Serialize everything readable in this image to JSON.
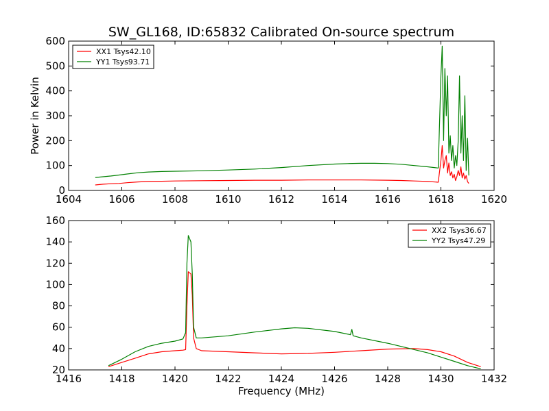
{
  "chart_data": [
    {
      "type": "line",
      "title": "SW_GL168, ID:65832 Calibrated On-source spectrum",
      "xlabel": "",
      "ylabel": "Power in Kelvin",
      "xlim": [
        1604,
        1620
      ],
      "ylim": [
        0,
        600
      ],
      "xticks": [
        1604,
        1606,
        1608,
        1610,
        1612,
        1614,
        1616,
        1618,
        1620
      ],
      "yticks": [
        0,
        100,
        200,
        300,
        400,
        500,
        600
      ],
      "grid": false,
      "legend": "top-left",
      "series": [
        {
          "name": "XX1 Tsys42.10",
          "color": "#ff0000",
          "x": [
            1605.0,
            1605.3,
            1605.6,
            1605.9,
            1606.2,
            1606.6,
            1607.0,
            1607.5,
            1608.0,
            1609.0,
            1610.0,
            1611.0,
            1612.0,
            1613.0,
            1614.0,
            1615.0,
            1616.0,
            1616.5,
            1617.0,
            1617.5,
            1617.9,
            1618.0,
            1618.05,
            1618.1,
            1618.15,
            1618.2,
            1618.25,
            1618.3,
            1618.35,
            1618.4,
            1618.45,
            1618.5,
            1618.55,
            1618.6,
            1618.65,
            1618.7,
            1618.75,
            1618.8,
            1618.85,
            1618.9,
            1618.95,
            1619.0,
            1619.05
          ],
          "values": [
            22,
            25,
            27,
            28,
            31,
            34,
            36,
            37,
            38,
            39,
            40,
            41,
            41,
            42,
            42,
            42,
            41,
            40,
            38,
            36,
            33,
            120,
            180,
            90,
            120,
            140,
            70,
            110,
            60,
            75,
            50,
            65,
            40,
            55,
            80,
            60,
            95,
            50,
            70,
            45,
            60,
            35,
            28
          ]
        },
        {
          "name": "YY1 Tsys93.71",
          "color": "#008000",
          "x": [
            1605.0,
            1605.3,
            1605.6,
            1605.9,
            1606.2,
            1606.6,
            1607.0,
            1607.5,
            1608.0,
            1609.0,
            1610.0,
            1611.0,
            1612.0,
            1613.0,
            1614.0,
            1614.5,
            1615.0,
            1615.5,
            1616.0,
            1616.5,
            1617.0,
            1617.5,
            1617.9,
            1618.0,
            1618.05,
            1618.1,
            1618.15,
            1618.2,
            1618.25,
            1618.3,
            1618.35,
            1618.4,
            1618.45,
            1618.5,
            1618.55,
            1618.6,
            1618.65,
            1618.7,
            1618.75,
            1618.8,
            1618.85,
            1618.9,
            1618.95,
            1619.0,
            1619.05
          ],
          "values": [
            52,
            55,
            58,
            62,
            66,
            71,
            74,
            76,
            77,
            79,
            82,
            86,
            92,
            100,
            106,
            108,
            109,
            109,
            108,
            105,
            100,
            95,
            90,
            460,
            580,
            200,
            490,
            300,
            460,
            150,
            220,
            120,
            180,
            90,
            140,
            100,
            200,
            460,
            150,
            300,
            120,
            380,
            80,
            210,
            60
          ]
        }
      ]
    },
    {
      "type": "line",
      "title": "",
      "xlabel": "Frequency (MHz)",
      "ylabel": "",
      "xlim": [
        1416,
        1432
      ],
      "ylim": [
        20,
        160
      ],
      "xticks": [
        1416,
        1418,
        1420,
        1422,
        1424,
        1426,
        1428,
        1430,
        1432
      ],
      "yticks": [
        20,
        40,
        60,
        80,
        100,
        120,
        140,
        160
      ],
      "grid": false,
      "legend": "top-right",
      "series": [
        {
          "name": "XX2 Tsys36.67",
          "color": "#ff0000",
          "x": [
            1417.5,
            1418.0,
            1418.5,
            1419.0,
            1419.5,
            1420.0,
            1420.3,
            1420.4,
            1420.45,
            1420.5,
            1420.6,
            1420.65,
            1420.7,
            1420.8,
            1421.0,
            1422.0,
            1423.0,
            1424.0,
            1425.0,
            1426.0,
            1427.0,
            1428.0,
            1429.0,
            1429.5,
            1430.0,
            1430.5,
            1431.0,
            1431.5
          ],
          "values": [
            23,
            27,
            31,
            35,
            37,
            38,
            38.5,
            39,
            80,
            112,
            110,
            90,
            50,
            40,
            38,
            37,
            36,
            35,
            35.5,
            36.5,
            38,
            39.5,
            40,
            39,
            37,
            33,
            27,
            23
          ]
        },
        {
          "name": "YY2 Tsys47.29",
          "color": "#008000",
          "x": [
            1417.5,
            1418.0,
            1418.5,
            1419.0,
            1419.5,
            1420.0,
            1420.3,
            1420.4,
            1420.45,
            1420.5,
            1420.6,
            1420.65,
            1420.7,
            1420.8,
            1421.0,
            1422.0,
            1423.0,
            1424.0,
            1424.5,
            1425.0,
            1426.0,
            1426.6,
            1426.65,
            1426.7,
            1427.0,
            1428.0,
            1429.0,
            1429.5,
            1430.0,
            1430.5,
            1431.0,
            1431.5
          ],
          "values": [
            24,
            30,
            37,
            42,
            45,
            47,
            49,
            55,
            120,
            146,
            140,
            110,
            60,
            50,
            50,
            52,
            55.5,
            58.5,
            59.5,
            59,
            56,
            53,
            58,
            52,
            50,
            45,
            39,
            36,
            32,
            28,
            24,
            21
          ]
        }
      ]
    }
  ]
}
